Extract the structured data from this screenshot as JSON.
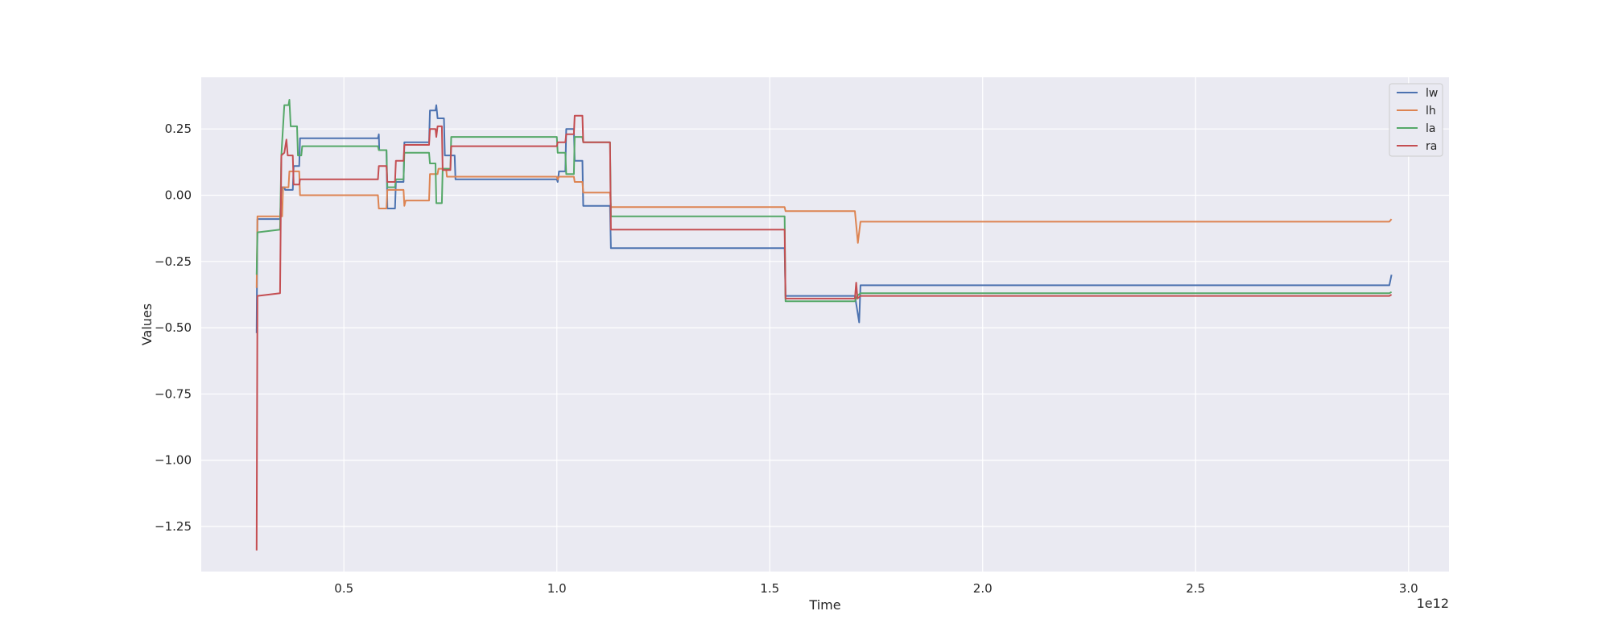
{
  "chart_data": {
    "type": "line",
    "title": "",
    "xlabel": "Time",
    "ylabel": "Values",
    "x_offset_label": "1e12",
    "xlim": [
      0.165,
      3.095
    ],
    "ylim": [
      -1.42,
      0.445
    ],
    "x_ticks": [
      0.5,
      1.0,
      1.5,
      2.0,
      2.5,
      3.0
    ],
    "x_tick_labels": [
      "0.5",
      "1.0",
      "1.5",
      "2.0",
      "2.5",
      "3.0"
    ],
    "y_ticks": [
      0.25,
      0.0,
      -0.25,
      -0.5,
      -0.75,
      -1.0,
      -1.25
    ],
    "y_tick_labels": [
      "0.25",
      "0.00",
      "−0.25",
      "−0.50",
      "−0.75",
      "−1.00",
      "−1.25"
    ],
    "grid": true,
    "legend_position": "top-right",
    "background": "#eaeaf2",
    "series": [
      {
        "name": "lw",
        "color": "#4c72b0",
        "points": [
          [
            0.295,
            -0.52
          ],
          [
            0.297,
            -0.09
          ],
          [
            0.35,
            -0.09
          ],
          [
            0.353,
            0.03
          ],
          [
            0.36,
            0.03
          ],
          [
            0.362,
            0.02
          ],
          [
            0.38,
            0.02
          ],
          [
            0.382,
            0.11
          ],
          [
            0.395,
            0.11
          ],
          [
            0.397,
            0.215
          ],
          [
            0.58,
            0.215
          ],
          [
            0.582,
            0.23
          ],
          [
            0.583,
            0.17
          ],
          [
            0.6,
            0.17
          ],
          [
            0.602,
            -0.05
          ],
          [
            0.62,
            -0.05
          ],
          [
            0.622,
            0.05
          ],
          [
            0.64,
            0.05
          ],
          [
            0.642,
            0.2
          ],
          [
            0.7,
            0.2
          ],
          [
            0.702,
            0.32
          ],
          [
            0.715,
            0.32
          ],
          [
            0.717,
            0.34
          ],
          [
            0.72,
            0.29
          ],
          [
            0.735,
            0.29
          ],
          [
            0.737,
            0.15
          ],
          [
            0.76,
            0.15
          ],
          [
            0.762,
            0.06
          ],
          [
            1.0,
            0.06
          ],
          [
            1.002,
            0.05
          ],
          [
            1.005,
            0.09
          ],
          [
            1.02,
            0.09
          ],
          [
            1.022,
            0.25
          ],
          [
            1.04,
            0.25
          ],
          [
            1.042,
            0.13
          ],
          [
            1.06,
            0.13
          ],
          [
            1.062,
            -0.04
          ],
          [
            1.125,
            -0.04
          ],
          [
            1.127,
            -0.2
          ],
          [
            1.535,
            -0.2
          ],
          [
            1.537,
            -0.38
          ],
          [
            1.7,
            -0.38
          ],
          [
            1.705,
            -0.43
          ],
          [
            1.71,
            -0.48
          ],
          [
            1.713,
            -0.34
          ],
          [
            2.955,
            -0.34
          ],
          [
            2.96,
            -0.3
          ]
        ]
      },
      {
        "name": "lh",
        "color": "#dd8452",
        "points": [
          [
            0.295,
            -0.35
          ],
          [
            0.297,
            -0.08
          ],
          [
            0.355,
            -0.08
          ],
          [
            0.357,
            0.03
          ],
          [
            0.37,
            0.03
          ],
          [
            0.372,
            0.09
          ],
          [
            0.395,
            0.09
          ],
          [
            0.397,
            0.0
          ],
          [
            0.58,
            0.0
          ],
          [
            0.582,
            -0.05
          ],
          [
            0.6,
            -0.05
          ],
          [
            0.602,
            0.02
          ],
          [
            0.64,
            0.02
          ],
          [
            0.642,
            -0.04
          ],
          [
            0.645,
            -0.02
          ],
          [
            0.7,
            -0.02
          ],
          [
            0.702,
            0.08
          ],
          [
            0.72,
            0.08
          ],
          [
            0.722,
            0.1
          ],
          [
            0.74,
            0.1
          ],
          [
            0.742,
            0.07
          ],
          [
            1.0,
            0.07
          ],
          [
            1.002,
            0.06
          ],
          [
            1.005,
            0.07
          ],
          [
            1.04,
            0.07
          ],
          [
            1.042,
            0.05
          ],
          [
            1.06,
            0.05
          ],
          [
            1.062,
            0.01
          ],
          [
            1.125,
            0.01
          ],
          [
            1.127,
            -0.045
          ],
          [
            1.535,
            -0.045
          ],
          [
            1.537,
            -0.06
          ],
          [
            1.7,
            -0.06
          ],
          [
            1.707,
            -0.18
          ],
          [
            1.713,
            -0.1
          ],
          [
            2.955,
            -0.1
          ],
          [
            2.96,
            -0.09
          ]
        ]
      },
      {
        "name": "la",
        "color": "#55a868",
        "points": [
          [
            0.295,
            -0.3
          ],
          [
            0.297,
            -0.14
          ],
          [
            0.35,
            -0.13
          ],
          [
            0.353,
            0.15
          ],
          [
            0.36,
            0.34
          ],
          [
            0.37,
            0.34
          ],
          [
            0.372,
            0.36
          ],
          [
            0.375,
            0.26
          ],
          [
            0.39,
            0.26
          ],
          [
            0.392,
            0.15
          ],
          [
            0.4,
            0.15
          ],
          [
            0.402,
            0.185
          ],
          [
            0.58,
            0.185
          ],
          [
            0.582,
            0.17
          ],
          [
            0.6,
            0.17
          ],
          [
            0.602,
            0.03
          ],
          [
            0.62,
            0.03
          ],
          [
            0.622,
            0.06
          ],
          [
            0.64,
            0.06
          ],
          [
            0.642,
            0.16
          ],
          [
            0.7,
            0.16
          ],
          [
            0.702,
            0.12
          ],
          [
            0.715,
            0.12
          ],
          [
            0.717,
            -0.03
          ],
          [
            0.73,
            -0.03
          ],
          [
            0.732,
            0.1
          ],
          [
            0.75,
            0.1
          ],
          [
            0.752,
            0.22
          ],
          [
            1.0,
            0.22
          ],
          [
            1.002,
            0.16
          ],
          [
            1.02,
            0.16
          ],
          [
            1.022,
            0.08
          ],
          [
            1.04,
            0.08
          ],
          [
            1.042,
            0.22
          ],
          [
            1.06,
            0.22
          ],
          [
            1.062,
            0.2
          ],
          [
            1.125,
            0.2
          ],
          [
            1.127,
            -0.08
          ],
          [
            1.535,
            -0.08
          ],
          [
            1.537,
            -0.4
          ],
          [
            1.7,
            -0.4
          ],
          [
            1.705,
            -0.38
          ],
          [
            1.713,
            -0.37
          ],
          [
            2.955,
            -0.37
          ],
          [
            2.96,
            -0.365
          ]
        ]
      },
      {
        "name": "ra",
        "color": "#c44e52",
        "points": [
          [
            0.295,
            -1.34
          ],
          [
            0.297,
            -0.38
          ],
          [
            0.35,
            -0.37
          ],
          [
            0.353,
            0.15
          ],
          [
            0.36,
            0.16
          ],
          [
            0.365,
            0.21
          ],
          [
            0.368,
            0.15
          ],
          [
            0.38,
            0.15
          ],
          [
            0.382,
            0.04
          ],
          [
            0.395,
            0.04
          ],
          [
            0.397,
            0.06
          ],
          [
            0.58,
            0.06
          ],
          [
            0.582,
            0.11
          ],
          [
            0.6,
            0.11
          ],
          [
            0.602,
            0.05
          ],
          [
            0.62,
            0.05
          ],
          [
            0.622,
            0.13
          ],
          [
            0.64,
            0.13
          ],
          [
            0.642,
            0.19
          ],
          [
            0.7,
            0.19
          ],
          [
            0.702,
            0.25
          ],
          [
            0.715,
            0.25
          ],
          [
            0.717,
            0.22
          ],
          [
            0.72,
            0.26
          ],
          [
            0.73,
            0.26
          ],
          [
            0.732,
            0.095
          ],
          [
            0.75,
            0.095
          ],
          [
            0.752,
            0.185
          ],
          [
            1.0,
            0.185
          ],
          [
            1.002,
            0.2
          ],
          [
            1.02,
            0.2
          ],
          [
            1.022,
            0.23
          ],
          [
            1.04,
            0.23
          ],
          [
            1.042,
            0.3
          ],
          [
            1.06,
            0.3
          ],
          [
            1.062,
            0.2
          ],
          [
            1.125,
            0.2
          ],
          [
            1.127,
            -0.13
          ],
          [
            1.535,
            -0.13
          ],
          [
            1.537,
            -0.39
          ],
          [
            1.7,
            -0.39
          ],
          [
            1.703,
            -0.33
          ],
          [
            1.706,
            -0.39
          ],
          [
            1.713,
            -0.38
          ],
          [
            2.955,
            -0.38
          ],
          [
            2.96,
            -0.375
          ]
        ]
      }
    ]
  }
}
